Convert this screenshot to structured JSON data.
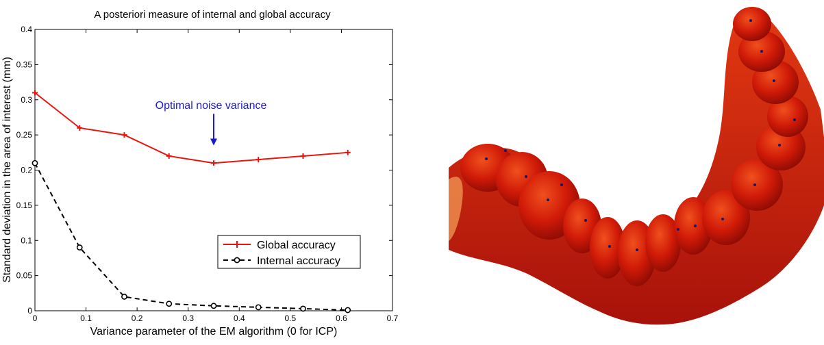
{
  "chart_data": {
    "type": "line",
    "title": "A posteriori measure of internal and global accuracy",
    "xlabel": "Variance parameter of the EM algorithm (0 for ICP)",
    "ylabel": "Standard deviation in the area of interest (mm)",
    "xlim": [
      0,
      0.7
    ],
    "ylim": [
      0,
      0.4
    ],
    "x_ticks": [
      "0",
      "0.1",
      "0.2",
      "0.3",
      "0.4",
      "0.5",
      "0.6",
      "0.7"
    ],
    "y_ticks": [
      "0",
      "0.05",
      "0.1",
      "0.15",
      "0.2",
      "0.25",
      "0.3",
      "0.35",
      "0.4"
    ],
    "x_tick_values": [
      0,
      0.1,
      0.2,
      0.3,
      0.4,
      0.5,
      0.6,
      0.7
    ],
    "y_tick_values": [
      0,
      0.05,
      0.1,
      0.15,
      0.2,
      0.25,
      0.3,
      0.35,
      0.4
    ],
    "grid": false,
    "legend_position": "lower-right",
    "series": [
      {
        "name": "Global accuracy",
        "color": "#e8140e",
        "style": "solid",
        "marker": "plus",
        "x": [
          0,
          0.0875,
          0.175,
          0.2625,
          0.35,
          0.4375,
          0.525,
          0.6125
        ],
        "y": [
          0.31,
          0.26,
          0.25,
          0.22,
          0.21,
          0.215,
          0.22,
          0.225
        ]
      },
      {
        "name": "Internal accuracy",
        "color": "#000000",
        "style": "dashed",
        "marker": "circle",
        "x": [
          0,
          0.0875,
          0.175,
          0.2625,
          0.35,
          0.4375,
          0.525,
          0.6125
        ],
        "y": [
          0.21,
          0.09,
          0.02,
          0.01,
          0.007,
          0.005,
          0.003,
          0.001
        ]
      }
    ],
    "annotation": {
      "text": "Optimal noise variance",
      "color": "#1a1acc",
      "arrow_x": 0.35,
      "arrow_y_top": 0.28,
      "arrow_y_bottom": 0.235
    }
  },
  "image_panel": {
    "description_icon": "dental-arch-3d-render-icon",
    "colors": {
      "main": "#d01a08",
      "highlight": "#f0501e",
      "dark": "#8a0a04",
      "landmark": "#1a1466"
    }
  }
}
